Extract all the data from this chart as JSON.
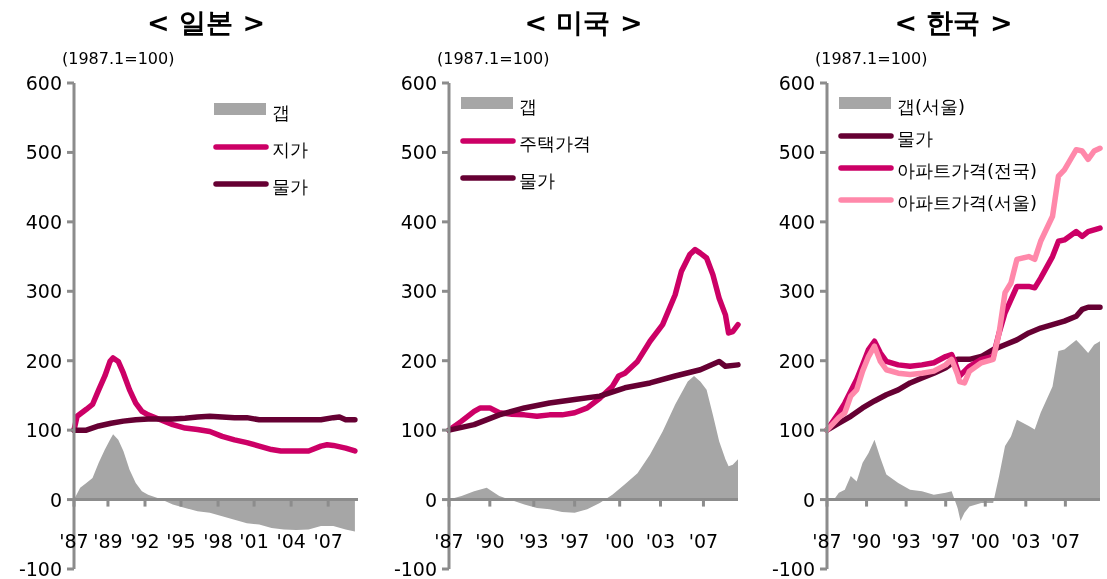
{
  "chart_data": [
    {
      "type": "line",
      "title": "< 일본 >",
      "ylabel": "(1987.1=100)",
      "xlim": [
        "1987-01",
        "2010-01"
      ],
      "ylim": [
        -100,
        600
      ],
      "yticks": [
        -100,
        0,
        100,
        200,
        300,
        400,
        500,
        600
      ],
      "xticks": [
        {
          "value": "1987-01",
          "label": "'87"
        },
        {
          "value": "1989-10",
          "label": "'89"
        },
        {
          "value": "1992-10",
          "label": "'92"
        },
        {
          "value": "1995-09",
          "label": "'95"
        },
        {
          "value": "1998-09",
          "label": "'98"
        },
        {
          "value": "2001-08",
          "label": "'01"
        },
        {
          "value": "2004-08",
          "label": "'04"
        },
        {
          "value": "2007-08",
          "label": "'07"
        }
      ],
      "legend": "top right",
      "series": [
        {
          "name": "갭",
          "type": "area",
          "color": "#a6a6a6",
          "x": [
            "1987-01",
            "1987-07",
            "1988-01",
            "1988-07",
            "1989-01",
            "1989-07",
            "1989-12",
            "1990-03",
            "1990-08",
            "1991-01",
            "1991-07",
            "1992-01",
            "1992-07",
            "1993-01",
            "1994-01",
            "1995-01",
            "1996-01",
            "1997-01",
            "1998-01",
            "1999-01",
            "2000-01",
            "2001-01",
            "2002-01",
            "2003-01",
            "2004-01",
            "2005-01",
            "2006-01",
            "2007-01",
            "2008-01",
            "2009-01",
            "2009-10"
          ],
          "values": [
            0,
            17,
            24,
            31,
            53,
            72,
            86,
            94,
            86,
            70,
            43,
            24,
            12,
            7,
            1,
            -7,
            -12,
            -17,
            -19,
            -24,
            -29,
            -34,
            -36,
            -41,
            -43,
            -44,
            -43,
            -38,
            -38,
            -43,
            -46
          ]
        },
        {
          "name": "지가",
          "type": "line",
          "color": "#cc0066",
          "x": [
            "1987-01",
            "1987-04",
            "1988-01",
            "1988-07",
            "1989-01",
            "1989-07",
            "1989-12",
            "1990-03",
            "1990-08",
            "1991-01",
            "1991-07",
            "1992-01",
            "1992-07",
            "1993-01",
            "1994-01",
            "1995-01",
            "1996-01",
            "1997-01",
            "1998-01",
            "1999-01",
            "2000-01",
            "2001-01",
            "2002-01",
            "2003-01",
            "2003-10",
            "2005-01",
            "2006-01",
            "2007-01",
            "2007-07",
            "2008-01",
            "2009-01",
            "2009-10"
          ],
          "values": [
            100,
            120,
            130,
            137,
            158,
            178,
            199,
            204,
            199,
            182,
            158,
            139,
            127,
            122,
            115,
            108,
            103,
            101,
            98,
            91,
            86,
            82,
            77,
            72,
            70,
            70,
            70,
            77,
            79,
            78,
            74,
            70
          ]
        },
        {
          "name": "물가",
          "type": "line",
          "color": "#660033",
          "x": [
            "1987-01",
            "1988-01",
            "1989-01",
            "1990-01",
            "1991-01",
            "1992-01",
            "1993-01",
            "1994-01",
            "1995-01",
            "1996-01",
            "1997-01",
            "1998-01",
            "1999-01",
            "2000-01",
            "2001-01",
            "2002-01",
            "2003-01",
            "2004-01",
            "2005-01",
            "2006-01",
            "2007-01",
            "2008-01",
            "2008-07",
            "2009-01",
            "2009-10"
          ],
          "values": [
            100,
            100,
            106,
            110,
            113,
            115,
            116,
            116,
            116,
            117,
            119,
            120,
            119,
            118,
            118,
            115,
            115,
            115,
            115,
            115,
            115,
            118,
            119,
            115,
            115
          ]
        }
      ]
    },
    {
      "type": "line",
      "title": "< 미국 >",
      "ylabel": "(1987.1=100)",
      "xlim": [
        "1987-01",
        "2010-01"
      ],
      "ylim": [
        -100,
        600
      ],
      "yticks": [
        -100,
        0,
        100,
        200,
        300,
        400,
        500,
        600
      ],
      "xticks": [
        {
          "value": "1987-01",
          "label": "'87"
        },
        {
          "value": "1990-04",
          "label": "'90"
        },
        {
          "value": "1993-10",
          "label": "'93"
        },
        {
          "value": "1997-01",
          "label": "'97"
        },
        {
          "value": "2000-08",
          "label": "'00"
        },
        {
          "value": "2003-11",
          "label": "'03"
        },
        {
          "value": "2007-04",
          "label": "'07"
        }
      ],
      "legend": "top left",
      "series": [
        {
          "name": "갭",
          "type": "area",
          "color": "#a6a6a6",
          "x": [
            "1987-01",
            "1988-01",
            "1989-01",
            "1990-01",
            "1991-01",
            "1992-01",
            "1993-01",
            "1994-01",
            "1995-01",
            "1996-01",
            "1997-01",
            "1998-01",
            "1999-01",
            "2000-01",
            "2001-01",
            "2002-01",
            "2003-01",
            "2004-01",
            "2005-01",
            "2006-01",
            "2006-07",
            "2007-01",
            "2007-07",
            "2008-01",
            "2008-07",
            "2009-01",
            "2009-04",
            "2009-08",
            "2010-01"
          ],
          "values": [
            0,
            5,
            12,
            17,
            5,
            -1,
            -7,
            -12,
            -14,
            -18,
            -19,
            -14,
            -5,
            7,
            22,
            38,
            65,
            98,
            137,
            170,
            178,
            170,
            158,
            122,
            84,
            58,
            48,
            50,
            58
          ]
        },
        {
          "name": "주택가격",
          "type": "line",
          "color": "#cc0066",
          "x": [
            "1987-01",
            "1988-01",
            "1989-01",
            "1989-07",
            "1990-04",
            "1991-01",
            "1992-01",
            "1993-01",
            "1994-01",
            "1995-01",
            "1996-01",
            "1997-01",
            "1998-01",
            "1999-01",
            "2000-01",
            "2000-07",
            "2001-01",
            "2002-01",
            "2003-01",
            "2004-01",
            "2005-01",
            "2005-07",
            "2006-03",
            "2006-08",
            "2007-01",
            "2007-07",
            "2008-01",
            "2008-07",
            "2009-01",
            "2009-04",
            "2009-08",
            "2010-01"
          ],
          "values": [
            100,
            113,
            127,
            132,
            132,
            125,
            123,
            122,
            120,
            122,
            122,
            125,
            132,
            146,
            163,
            178,
            182,
            199,
            228,
            252,
            295,
            329,
            353,
            360,
            355,
            348,
            324,
            290,
            266,
            240,
            242,
            252
          ]
        },
        {
          "name": "물가",
          "type": "line",
          "color": "#660033",
          "x": [
            "1987-01",
            "1989-01",
            "1991-01",
            "1993-01",
            "1995-01",
            "1997-01",
            "1999-01",
            "2001-01",
            "2003-01",
            "2005-01",
            "2007-01",
            "2008-07",
            "2009-01",
            "2010-01"
          ],
          "values": [
            100,
            108,
            122,
            132,
            139,
            144,
            149,
            161,
            168,
            178,
            187,
            199,
            192,
            194
          ]
        }
      ]
    },
    {
      "type": "line",
      "title": "< 한국 >",
      "ylabel": "(1987.1=100)",
      "xlim": [
        "1987-01",
        "2010-01"
      ],
      "ylim": [
        -100,
        600
      ],
      "yticks": [
        -100,
        0,
        100,
        200,
        300,
        400,
        500,
        600
      ],
      "xticks": [
        {
          "value": "1987-01",
          "label": "'87"
        },
        {
          "value": "1990-05",
          "label": "'90"
        },
        {
          "value": "1993-09",
          "label": "'93"
        },
        {
          "value": "1997-01",
          "label": "'97"
        },
        {
          "value": "2000-05",
          "label": "'00"
        },
        {
          "value": "2003-10",
          "label": "'03"
        },
        {
          "value": "2007-02",
          "label": "'07"
        }
      ],
      "legend": "top left",
      "series": [
        {
          "name": "갭(서울)",
          "type": "area",
          "color": "#a6a6a6",
          "x": [
            "1987-01",
            "1987-07",
            "1988-01",
            "1988-07",
            "1989-01",
            "1989-07",
            "1990-01",
            "1990-07",
            "1991-01",
            "1991-07",
            "1992-01",
            "1993-01",
            "1994-01",
            "1995-01",
            "1996-01",
            "1997-01",
            "1997-07",
            "1998-01",
            "1998-04",
            "1998-08",
            "1999-01",
            "2000-01",
            "2001-01",
            "2001-07",
            "2002-01",
            "2002-07",
            "2003-01",
            "2004-01",
            "2004-07",
            "2005-01",
            "2006-01",
            "2006-07",
            "2007-01",
            "2008-01",
            "2008-07",
            "2009-01",
            "2009-07",
            "2010-01"
          ],
          "values": [
            0,
            -2,
            10,
            14,
            34,
            26,
            53,
            67,
            86,
            60,
            36,
            24,
            14,
            12,
            7,
            10,
            12,
            -12,
            -31,
            -19,
            -10,
            -5,
            -5,
            34,
            77,
            91,
            115,
            106,
            101,
            125,
            163,
            214,
            216,
            230,
            221,
            211,
            223,
            228
          ]
        },
        {
          "name": "물가",
          "type": "line",
          "color": "#660033",
          "x": [
            "1987-01",
            "1988-01",
            "1989-01",
            "1990-01",
            "1991-01",
            "1992-01",
            "1993-01",
            "1994-01",
            "1995-01",
            "1996-01",
            "1997-01",
            "1998-01",
            "1999-01",
            "2000-01",
            "2001-01",
            "2002-01",
            "2003-01",
            "2004-01",
            "2005-01",
            "2006-01",
            "2007-01",
            "2008-01",
            "2008-07",
            "2009-01",
            "2010-01"
          ],
          "values": [
            100,
            110,
            120,
            132,
            142,
            151,
            158,
            168,
            175,
            182,
            190,
            202,
            202,
            206,
            216,
            223,
            230,
            240,
            247,
            252,
            257,
            264,
            274,
            277,
            277
          ]
        },
        {
          "name": "아파트가격(전국)",
          "type": "line",
          "color": "#cc0066",
          "x": [
            "1987-01",
            "1988-01",
            "1988-07",
            "1989-01",
            "1989-07",
            "1990-01",
            "1990-07",
            "1991-01",
            "1991-07",
            "1992-01",
            "1993-01",
            "1994-01",
            "1995-01",
            "1996-01",
            "1997-01",
            "1997-07",
            "1997-10",
            "1998-03",
            "1998-08",
            "1999-01",
            "2000-01",
            "2001-01",
            "2001-07",
            "2002-01",
            "2002-07",
            "2003-01",
            "2004-01",
            "2004-07",
            "2005-01",
            "2006-01",
            "2006-07",
            "2007-01",
            "2008-01",
            "2008-07",
            "2009-01",
            "2010-01"
          ],
          "values": [
            100,
            125,
            139,
            156,
            173,
            194,
            216,
            228,
            211,
            199,
            194,
            192,
            194,
            197,
            206,
            209,
            199,
            178,
            185,
            192,
            202,
            206,
            240,
            269,
            288,
            307,
            307,
            305,
            319,
            350,
            372,
            374,
            386,
            379,
            386,
            391
          ]
        },
        {
          "name": "아파트가격(서울)",
          "type": "line",
          "color": "#ff88aa",
          "x": [
            "1987-01",
            "1988-01",
            "1988-07",
            "1989-01",
            "1989-07",
            "1990-01",
            "1990-07",
            "1991-01",
            "1991-07",
            "1992-01",
            "1993-01",
            "1994-01",
            "1995-01",
            "1996-01",
            "1997-01",
            "1997-07",
            "1998-01",
            "1998-03",
            "1998-08",
            "1999-01",
            "2000-01",
            "2001-01",
            "2001-07",
            "2002-01",
            "2002-07",
            "2003-01",
            "2004-01",
            "2004-07",
            "2005-01",
            "2006-01",
            "2006-07",
            "2007-01",
            "2008-01",
            "2008-07",
            "2009-01",
            "2009-07",
            "2010-01"
          ],
          "values": [
            100,
            118,
            125,
            149,
            158,
            185,
            206,
            221,
            199,
            187,
            182,
            180,
            182,
            185,
            194,
            202,
            180,
            170,
            168,
            185,
            197,
            202,
            240,
            298,
            312,
            346,
            350,
            346,
            372,
            408,
            466,
            475,
            504,
            502,
            490,
            502,
            506
          ]
        }
      ]
    }
  ]
}
